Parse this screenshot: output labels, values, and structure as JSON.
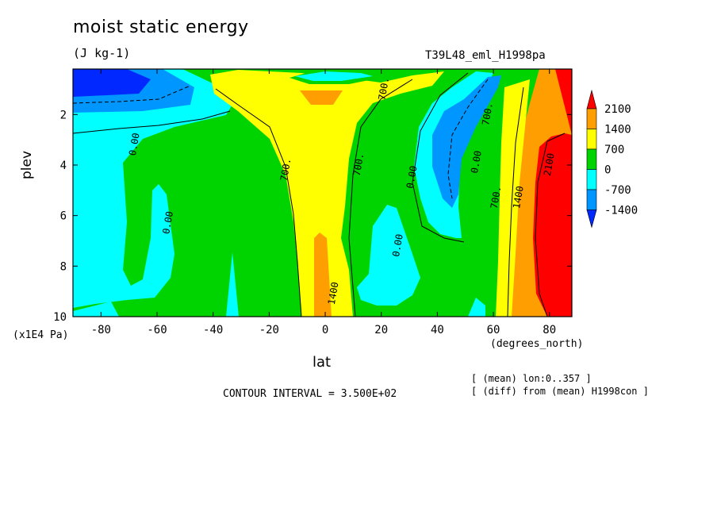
{
  "chart_data": {
    "type": "heatmap",
    "title": "moist static energy",
    "units": "(J kg-1)",
    "experiment": "T39L48_eml_H1998pa",
    "xlabel": "lat",
    "x_units": "(degrees_north)",
    "ylabel": "plev",
    "y_units": "(x1E4 Pa)",
    "xlim": [
      -90,
      88
    ],
    "ylim": [
      10,
      0.2
    ],
    "x_ticks": [
      -80,
      -60,
      -40,
      -20,
      0,
      20,
      40,
      60,
      80
    ],
    "y_ticks": [
      2,
      4,
      6,
      8,
      10
    ],
    "colorbar": {
      "labels": [
        "2100",
        "1400",
        "700",
        "0",
        "-700",
        "-1400"
      ],
      "bin_colors": [
        "#ff0000",
        "#ff9e00",
        "#ffff00",
        "#00d400",
        "#00ffff",
        "#0096ff",
        "#0028ff"
      ],
      "extend": "both"
    },
    "contour_labels": [
      {
        "text": "0.00",
        "lat": -67,
        "plev": 3.2
      },
      {
        "text": "0.00",
        "lat": -55,
        "plev": 6.3
      },
      {
        "text": "700.",
        "lat": -13,
        "plev": 4.2
      },
      {
        "text": "700.",
        "lat": 13,
        "plev": 4.0
      },
      {
        "text": "700.",
        "lat": 22,
        "plev": 1.0
      },
      {
        "text": "0.00",
        "lat": 32,
        "plev": 4.5
      },
      {
        "text": "0.00",
        "lat": 27,
        "plev": 7.2
      },
      {
        "text": "700.",
        "lat": 59,
        "plev": 2.0
      },
      {
        "text": "0.00",
        "lat": 55,
        "plev": 3.9
      },
      {
        "text": "700.",
        "lat": 62,
        "plev": 5.3
      },
      {
        "text": "1400",
        "lat": 70,
        "plev": 5.3
      },
      {
        "text": "2100",
        "lat": 81,
        "plev": 4.0
      },
      {
        "text": "1400",
        "lat": 4,
        "plev": 9.1
      }
    ],
    "contour_interval": "CONTOUR INTERVAL = 3.500E+02",
    "notes": [
      "[ (mean) lon:0..357 ]",
      "[ (diff) from (mean) H1998con ]"
    ]
  }
}
